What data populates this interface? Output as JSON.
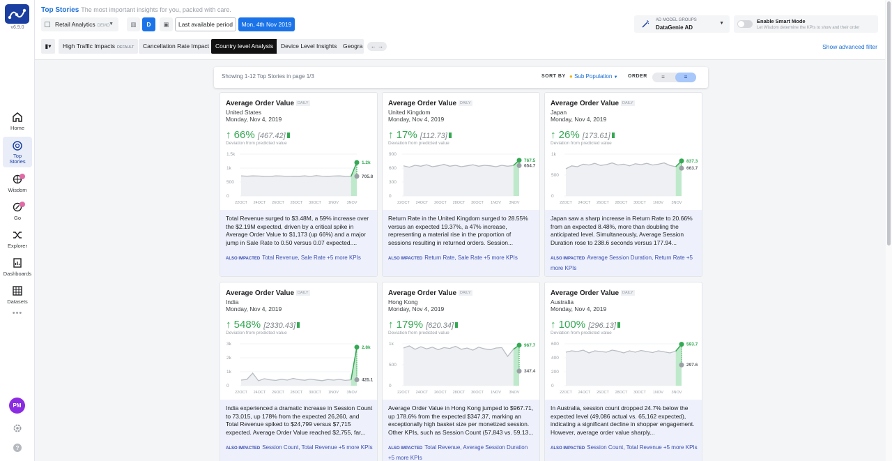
{
  "app": {
    "version": "v6.9.0",
    "user_initials": "PM"
  },
  "nav": [
    {
      "label": "Home",
      "icon": "home-icon"
    },
    {
      "label": "Top\nStories",
      "icon": "top-stories-icon"
    },
    {
      "label": "Wisdom",
      "icon": "wisdom-icon"
    },
    {
      "label": "Go",
      "icon": "go-icon"
    },
    {
      "label": "Explorer",
      "icon": "explorer-icon"
    },
    {
      "label": "Dashboards",
      "icon": "dashboards-icon"
    },
    {
      "label": "Datasets",
      "icon": "datasets-icon"
    }
  ],
  "nav_more": "•••",
  "header": {
    "title": "Top Stories",
    "subtitle": "The most important insights for you, packed with care.",
    "app_selector": "Retail Analytics",
    "app_tag": "DEMO",
    "granularity": "D",
    "period": "Last available period",
    "date": "Mon, 4th Nov 2019",
    "model_label": "AD MODEL GROUPS",
    "model_value": "DataGenie AD",
    "smart_label": "Enable Smart Mode",
    "smart_sub": "Let Wisdom determine the KPIs to show and their order",
    "advanced_filter": "Show advanced filter"
  },
  "tabs": [
    {
      "label": "High Traffic Impacts",
      "tag": "DEFAULT",
      "active": false
    },
    {
      "label": "Cancellation Rate Impact",
      "tag": "",
      "active": false
    },
    {
      "label": "Country level Analysis",
      "tag": "",
      "active": true
    },
    {
      "label": "Device Level Insights",
      "tag": "",
      "active": false
    },
    {
      "label": "Geogra",
      "tag": "",
      "active": false
    }
  ],
  "sort_bar": {
    "showing": "Showing 1-12 Top Stories in page 1/3",
    "sort_by_label": "SORT BY",
    "sort_by_value": "Sub Population",
    "order_label": "ORDER"
  },
  "colors": {
    "accent": "#1a73e8",
    "positive": "#34a853",
    "story_bg": "#eef1fb"
  },
  "cards": [
    {
      "kpi": "Average Order Value",
      "freq": "DAILY",
      "population": "United States",
      "date": "Monday, Nov 4, 2019",
      "change": "66%",
      "predicted": "[467.42]",
      "deviation_label": "Deviation from predicted value",
      "y_ticks": [
        "1.5k",
        "1k",
        "500",
        "0"
      ],
      "x_ticks": [
        "22OCT",
        "24OCT",
        "26OCT",
        "28OCT",
        "30OCT",
        "1NOV",
        "3NOV"
      ],
      "actual_label": "1.2k",
      "pred_label": "705.8",
      "chart_data": {
        "type": "line",
        "ylim": [
          0,
          1500
        ],
        "values": [
          720,
          710,
          720,
          715,
          705,
          700,
          720,
          715,
          700,
          710,
          705,
          720,
          700,
          730,
          710,
          705,
          715,
          720,
          705,
          700,
          1200
        ],
        "actual": 1200,
        "predicted": 705.8
      },
      "story": "Total Revenue surged to $3.48M, a 59% increase over the $2.19M expected, driven by a critical spike in Average Order Value to $1,173 (up 66%) and a major jump in Sale Rate to 0.50 versus 0.07 expected....",
      "also_label": "ALSO IMPACTED",
      "also": "Total Revenue, Sale Rate +5 more KPIs"
    },
    {
      "kpi": "Average Order Value",
      "freq": "DAILY",
      "population": "United Kingdom",
      "date": "Monday, Nov 4, 2019",
      "change": "17%",
      "predicted": "[112.73]",
      "deviation_label": "Deviation from predicted value",
      "y_ticks": [
        "900",
        "600",
        "300",
        "0"
      ],
      "x_ticks": [
        "22OCT",
        "24OCT",
        "26OCT",
        "28OCT",
        "30OCT",
        "1NOV",
        "3NOV"
      ],
      "actual_label": "767.5",
      "pred_label": "654.7",
      "chart_data": {
        "type": "line",
        "ylim": [
          0,
          900
        ],
        "values": [
          650,
          620,
          660,
          640,
          670,
          630,
          650,
          680,
          640,
          660,
          630,
          650,
          670,
          640,
          660,
          650,
          630,
          660,
          640,
          655,
          767.5
        ],
        "actual": 767.5,
        "predicted": 654.7
      },
      "story": "Return Rate in the United Kingdom surged to 28.55% versus an expected 19.37%, a 47% increase, representing a material rise in the proportion of sessions resulting in returned orders. Session...",
      "also_label": "ALSO IMPACTED",
      "also": "Return Rate, Sale Rate +5 more KPIs"
    },
    {
      "kpi": "Average Order Value",
      "freq": "DAILY",
      "population": "Japan",
      "date": "Monday, Nov 4, 2019",
      "change": "26%",
      "predicted": "[173.61]",
      "deviation_label": "Deviation from predicted value",
      "y_ticks": [
        "1k",
        "500",
        "0"
      ],
      "x_ticks": [
        "22OCT",
        "24OCT",
        "26OCT",
        "28OCT",
        "30OCT",
        "1NOV",
        "3NOV"
      ],
      "actual_label": "837.3",
      "pred_label": "663.7",
      "chart_data": {
        "type": "line",
        "ylim": [
          0,
          1000
        ],
        "values": [
          650,
          720,
          700,
          760,
          740,
          780,
          730,
          750,
          790,
          740,
          760,
          720,
          770,
          750,
          780,
          740,
          760,
          790,
          730,
          700,
          837.3
        ],
        "actual": 837.3,
        "predicted": 663.7
      },
      "story": "Japan saw a sharp increase in Return Rate to 20.66% from an expected 8.48%, more than doubling the anticipated level. Simultaneously, Average Session Duration rose to 238.6 seconds versus 177.94...",
      "also_label": "ALSO IMPACTED",
      "also": "Average Session Duration, Return Rate +5 more KPIs"
    },
    {
      "kpi": "Average Order Value",
      "freq": "DAILY",
      "population": "India",
      "date": "Monday, Nov 4, 2019",
      "change": "548%",
      "predicted": "[2330.43]",
      "deviation_label": "Deviation from predicted value",
      "y_ticks": [
        "3k",
        "2k",
        "1k",
        "0"
      ],
      "x_ticks": [
        "22OCT",
        "24OCT",
        "26OCT",
        "28OCT",
        "30OCT",
        "1NOV",
        "3NOV"
      ],
      "actual_label": "2.8k",
      "pred_label": "425.1",
      "chart_data": {
        "type": "line",
        "ylim": [
          0,
          3000
        ],
        "values": [
          400,
          450,
          900,
          350,
          500,
          420,
          380,
          460,
          400,
          520,
          430,
          390,
          470,
          410,
          360,
          440,
          400,
          450,
          380,
          420,
          2760
        ],
        "actual": 2760,
        "predicted": 425.1
      },
      "story": "India experienced a dramatic increase in Session Count to 73,015, up 178% from the expected 26,260, and Total Revenue spiked to $24,799 versus $7,715 expected. Average Order Value reached $2,755, far...",
      "also_label": "ALSO IMPACTED",
      "also": "Session Count, Total Revenue +5 more KPIs"
    },
    {
      "kpi": "Average Order Value",
      "freq": "DAILY",
      "population": "Hong Kong",
      "date": "Monday, Nov 4, 2019",
      "change": "179%",
      "predicted": "[620.34]",
      "deviation_label": "Deviation from predicted value",
      "y_ticks": [
        "1k",
        "500",
        "0"
      ],
      "x_ticks": [
        "22OCT",
        "24OCT",
        "26OCT",
        "28OCT",
        "30OCT",
        "1NOV",
        "3NOV"
      ],
      "actual_label": "967.7",
      "pred_label": "347.4",
      "chart_data": {
        "type": "line",
        "ylim": [
          0,
          1000
        ],
        "values": [
          900,
          950,
          870,
          930,
          880,
          920,
          860,
          910,
          890,
          940,
          870,
          900,
          850,
          920,
          880,
          860,
          900,
          910,
          700,
          870,
          967.7
        ],
        "actual": 967.7,
        "predicted": 347.4
      },
      "story": "Average Order Value in Hong Kong jumped to $967.71, up 178.6% from the expected $347.37, marking an exceptionally high basket size per monetized session. Other KPIs, such as Session Count (57,843 vs. 59,13...",
      "also_label": "ALSO IMPACTED",
      "also": "Total Revenue, Average Session Duration +5 more KPIs"
    },
    {
      "kpi": "Average Order Value",
      "freq": "DAILY",
      "population": "Australia",
      "date": "Monday, Nov 4, 2019",
      "change": "100%",
      "predicted": "[296.13]",
      "deviation_label": "Deviation from predicted value",
      "y_ticks": [
        "600",
        "400",
        "200",
        "0"
      ],
      "x_ticks": [
        "22OCT",
        "24OCT",
        "26OCT",
        "28OCT",
        "30OCT",
        "1NOV",
        "3NOV"
      ],
      "actual_label": "593.7",
      "pred_label": "297.6",
      "chart_data": {
        "type": "line",
        "ylim": [
          0,
          600
        ],
        "values": [
          480,
          500,
          490,
          510,
          470,
          500,
          490,
          480,
          510,
          495,
          470,
          500,
          480,
          505,
          490,
          475,
          500,
          485,
          470,
          495,
          593.7
        ],
        "actual": 593.7,
        "predicted": 297.6
      },
      "story": "In Australia, session count dropped 24.7% below the expected level (49,086 actual vs. 65,162 expected), indicating a significant decline in shopper engagement. However, average order value sharply...",
      "also_label": "ALSO IMPACTED",
      "also": "Session Count, Total Revenue +5 more KPIs"
    }
  ]
}
